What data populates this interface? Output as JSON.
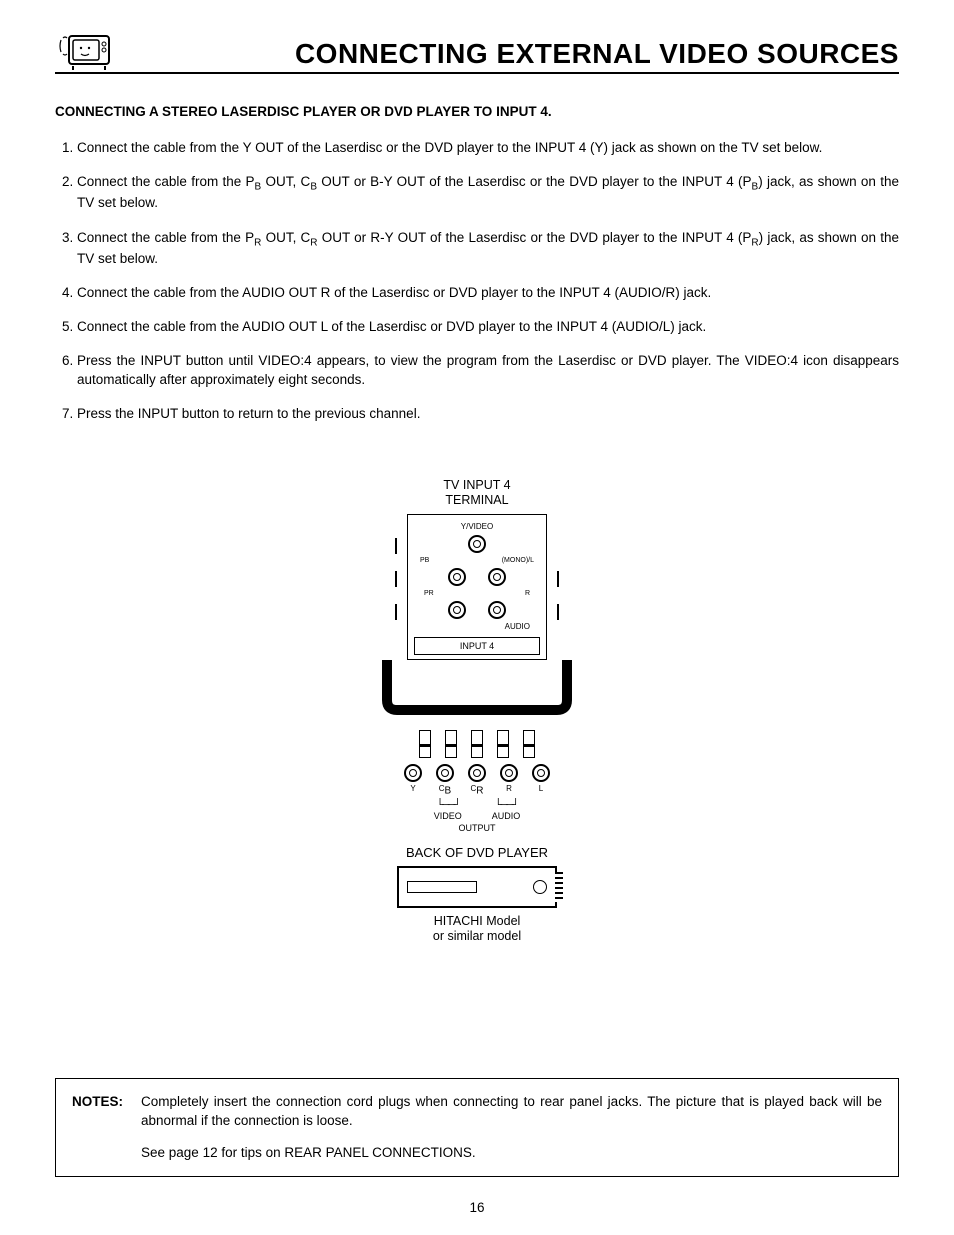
{
  "header": {
    "title": "CONNECTING EXTERNAL VIDEO SOURCES"
  },
  "section_heading": "CONNECTING A STEREO LASERDISC PLAYER OR DVD PLAYER TO INPUT 4.",
  "steps": [
    "Connect  the cable from the Y OUT of the Laserdisc or the DVD player to the INPUT 4 (Y) jack as shown on the TV set below.",
    "Connect the cable from the P__B__ OUT, C__B__ OUT or B-Y OUT of the Laserdisc or the DVD player to the INPUT 4 (P__B__) jack, as shown on the TV set below.",
    "Connect the cable from the P__R__ OUT, C__R__ OUT or R-Y OUT of the Laserdisc or the DVD player to the INPUT 4 (P__R__) jack, as shown on the TV set below.",
    "Connect the cable from the AUDIO OUT R of the Laserdisc or DVD player to the INPUT 4 (AUDIO/R) jack.",
    "Connect the cable from the AUDIO OUT L of the Laserdisc or DVD player to the INPUT 4 (AUDIO/L) jack.",
    "Press the INPUT button until VIDEO:4 appears, to view the program from the Laserdisc or DVD player.  The VIDEO:4 icon disappears automatically after approximately eight seconds.",
    "Press the INPUT button to return to the previous channel."
  ],
  "diagram": {
    "top_label_line1": "TV INPUT 4",
    "top_label_line2": "TERMINAL",
    "terminal_labels": {
      "yvideo": "Y/VIDEO",
      "pb": "PB",
      "mono_l": "(MONO)/L",
      "pr": "PR",
      "r": "R",
      "audio": "AUDIO",
      "input4": "INPUT 4"
    },
    "output_jacks": [
      "Y",
      "CB",
      "CR",
      "R",
      "L"
    ],
    "bracket_video": "VIDEO",
    "bracket_audio": "AUDIO",
    "output_label": "OUTPUT",
    "back_label": "BACK OF DVD PLAYER",
    "model_line1": "HITACHI Model",
    "model_line2": "or similar model"
  },
  "notes": {
    "label": "NOTES:",
    "paragraphs": [
      "Completely insert the connection cord plugs when connecting to rear panel jacks.  The picture that is played back will be abnormal if the connection is loose.",
      "See page 12 for tips on REAR PANEL CONNECTIONS."
    ]
  },
  "page_number": "16"
}
